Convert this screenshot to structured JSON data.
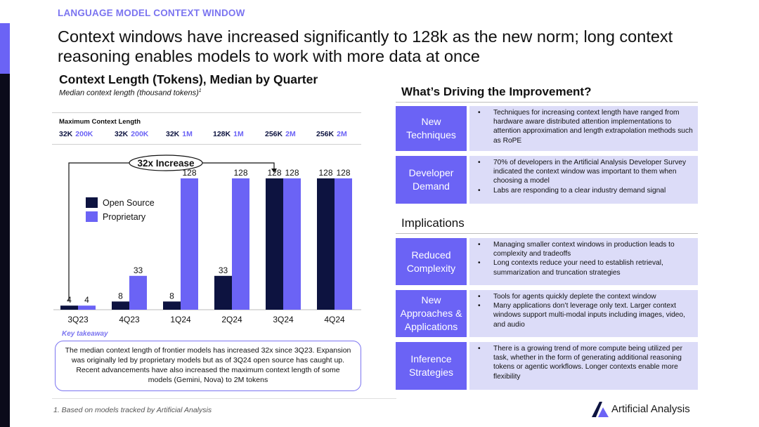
{
  "overline": "LANGUAGE MODEL CONTEXT WINDOW",
  "headline": "Context windows have increased significantly to 128k as the new norm; long context reasoning enables models to work with more data at once",
  "chart_data": {
    "type": "bar",
    "title": "Context Length (Tokens), Median by Quarter",
    "subtitle": "Median context length (thousand tokens)",
    "subtitle_footnote": "1",
    "categories": [
      "3Q23",
      "4Q23",
      "1Q24",
      "2Q24",
      "3Q24",
      "4Q24"
    ],
    "series": [
      {
        "name": "Open Source",
        "color": "#0d1340",
        "values": [
          4,
          8,
          8,
          33,
          128,
          128
        ]
      },
      {
        "name": "Proprietary",
        "color": "#6b63f5",
        "values": [
          4,
          33,
          128,
          128,
          128,
          128
        ]
      }
    ],
    "ylim": [
      0,
      128
    ],
    "grid": false,
    "legend_position": "left",
    "annotation": "32x Increase",
    "max_context": {
      "label": "Maximum Context Length",
      "entries": [
        {
          "open": "32K",
          "prop": "200K"
        },
        {
          "open": "32K",
          "prop": "200K"
        },
        {
          "open": "32K",
          "prop": "1M"
        },
        {
          "open": "128K",
          "prop": "1M"
        },
        {
          "open": "256K",
          "prop": "2M"
        },
        {
          "open": "256K",
          "prop": "2M"
        }
      ]
    }
  },
  "takeaway": {
    "label": "Key takeaway",
    "text": "The median context length of frontier models has increased 32x since 3Q23. Expansion was originally led by proprietary models but as of 3Q24 open source has caught up. Recent advancements have also increased the maximum context length of some models (Gemini, Nova) to 2M tokens"
  },
  "drivers": {
    "heading": "What’s Driving the Improvement?",
    "rows": [
      {
        "label": "New Techniques",
        "bullets": [
          "Techniques for increasing context length have ranged from hardware aware distributed attention implementations to attention approximation and length extrapolation methods such as RoPE"
        ]
      },
      {
        "label": "Developer Demand",
        "bullets": [
          "70% of developers in the Artificial Analysis Developer Survey indicated the context window was important to them when choosing a model",
          "Labs are responding to a clear industry demand signal"
        ]
      }
    ]
  },
  "implications": {
    "heading": "Implications",
    "rows": [
      {
        "label": "Reduced Complexity",
        "bullets": [
          "Managing smaller context windows in production leads to complexity and tradeoffs",
          "Long contexts reduce your need to establish retrieval, summarization and truncation strategies"
        ]
      },
      {
        "label": "New Approaches & Applications",
        "bullets": [
          "Tools for agents quickly deplete the context window",
          "Many applications don’t leverage only text. Larger context windows support multi-modal inputs including images, video, and audio"
        ]
      },
      {
        "label": "Inference Strategies",
        "bullets": [
          "There is a growing trend of more compute being utilized per task, whether in the form of generating additional reasoning tokens or agentic workflows. Longer contexts enable more flexibility"
        ]
      }
    ]
  },
  "footnote": "1. Based on models tracked by Artificial Analysis",
  "brand": "Artificial Analysis",
  "colors": {
    "accent": "#6b63f5",
    "dark": "#0d1340",
    "panel": "#dcdcf8"
  }
}
